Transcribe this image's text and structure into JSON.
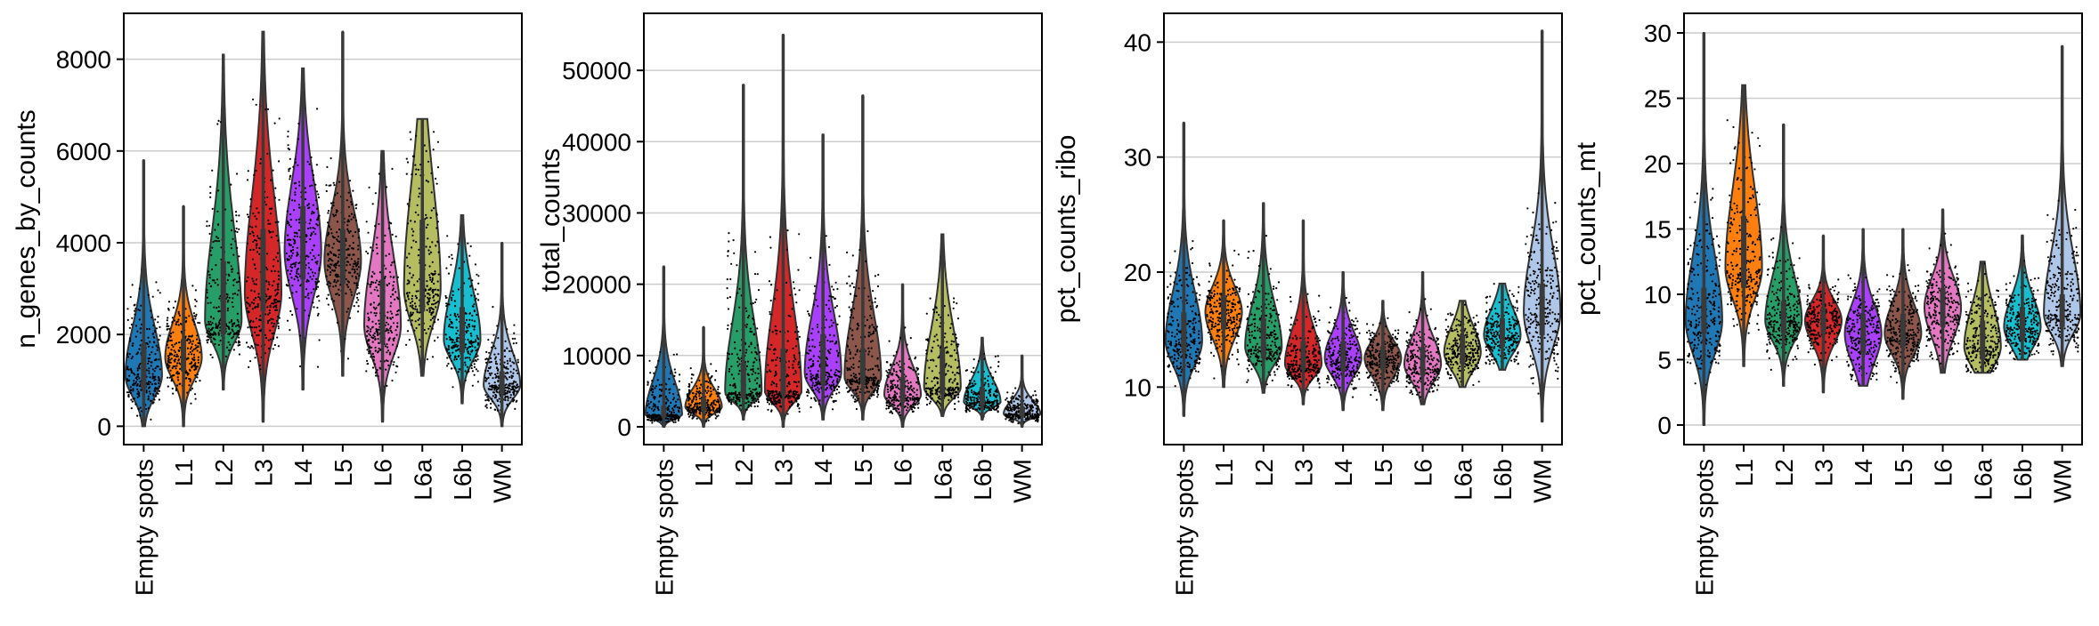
{
  "figure": {
    "palette": {
      "Empty spots": "#1f77b4",
      "L1": "#ff7f0e",
      "L2": "#279e68",
      "L3": "#d62728",
      "L4": "#aa40fc",
      "L5": "#8c564b",
      "L6": "#e377c2",
      "L6a": "#b5bd61",
      "L6b": "#17becf",
      "WM": "#aec7e8"
    }
  },
  "chart_data": [
    {
      "type": "violin",
      "ylabel": "n_genes_by_counts",
      "categories": [
        "Empty spots",
        "L1",
        "L2",
        "L3",
        "L4",
        "L5",
        "L6",
        "L6a",
        "L6b",
        "WM"
      ],
      "yticks": [
        0,
        2000,
        4000,
        6000,
        8000
      ],
      "ylim": [
        -400,
        9000
      ],
      "grid": true,
      "series": [
        {
          "category": "Empty spots",
          "min": 0,
          "max": 5800,
          "median": 1200,
          "q1": 800,
          "q3": 1800,
          "mode": 1100
        },
        {
          "category": "L1",
          "min": 0,
          "max": 4800,
          "median": 1500,
          "q1": 1200,
          "q3": 1900,
          "mode": 1500
        },
        {
          "category": "L2",
          "min": 800,
          "max": 8100,
          "median": 2600,
          "q1": 2000,
          "q3": 3600,
          "mode": 2300
        },
        {
          "category": "L3",
          "min": 100,
          "max": 8600,
          "median": 3300,
          "q1": 2500,
          "q3": 4300,
          "mode": 2900
        },
        {
          "category": "L4",
          "min": 800,
          "max": 7800,
          "median": 4000,
          "q1": 3200,
          "q3": 4800,
          "mode": 3800
        },
        {
          "category": "L5",
          "min": 1100,
          "max": 8600,
          "median": 3700,
          "q1": 3100,
          "q3": 4300,
          "mode": 3600
        },
        {
          "category": "L6",
          "min": 100,
          "max": 6000,
          "median": 2400,
          "q1": 1800,
          "q3": 3200,
          "mode": 2200
        },
        {
          "category": "L6a",
          "min": 1100,
          "max": 6700,
          "median": 3500,
          "q1": 2500,
          "q3": 4500,
          "mode": 3000
        },
        {
          "category": "L6b",
          "min": 500,
          "max": 4600,
          "median": 2000,
          "q1": 1600,
          "q3": 2600,
          "mode": 1900
        },
        {
          "category": "WM",
          "min": 0,
          "max": 4000,
          "median": 900,
          "q1": 700,
          "q3": 1200,
          "mode": 900
        }
      ]
    },
    {
      "type": "violin",
      "ylabel": "total_counts",
      "categories": [
        "Empty spots",
        "L1",
        "L2",
        "L3",
        "L4",
        "L5",
        "L6",
        "L6a",
        "L6b",
        "WM"
      ],
      "yticks": [
        0,
        10000,
        20000,
        30000,
        40000,
        50000
      ],
      "ylim": [
        -2500,
        58000
      ],
      "grid": true,
      "series": [
        {
          "category": "Empty spots",
          "min": 0,
          "max": 22500,
          "median": 2000,
          "q1": 1300,
          "q3": 3000,
          "mode": 1700
        },
        {
          "category": "L1",
          "min": 0,
          "max": 14000,
          "median": 3000,
          "q1": 2200,
          "q3": 4000,
          "mode": 2800
        },
        {
          "category": "L2",
          "min": 1000,
          "max": 48000,
          "median": 6000,
          "q1": 4000,
          "q3": 9000,
          "mode": 4800
        },
        {
          "category": "L3",
          "min": 0,
          "max": 55000,
          "median": 7000,
          "q1": 4500,
          "q3": 11000,
          "mode": 5000
        },
        {
          "category": "L4",
          "min": 1000,
          "max": 41000,
          "median": 9000,
          "q1": 6000,
          "q3": 13000,
          "mode": 7500
        },
        {
          "category": "L5",
          "min": 1000,
          "max": 46500,
          "median": 8000,
          "q1": 6000,
          "q3": 11000,
          "mode": 7000
        },
        {
          "category": "L6",
          "min": 0,
          "max": 20000,
          "median": 5000,
          "q1": 3500,
          "q3": 7000,
          "mode": 4500
        },
        {
          "category": "L6a",
          "min": 1500,
          "max": 27000,
          "median": 7000,
          "q1": 4500,
          "q3": 11000,
          "mode": 5500
        },
        {
          "category": "L6b",
          "min": 1000,
          "max": 12500,
          "median": 4000,
          "q1": 3000,
          "q3": 5500,
          "mode": 3500
        },
        {
          "category": "WM",
          "min": 0,
          "max": 10000,
          "median": 2000,
          "q1": 1500,
          "q3": 2800,
          "mode": 1800
        }
      ]
    },
    {
      "type": "violin",
      "ylabel": "pct_counts_ribo",
      "categories": [
        "Empty spots",
        "L1",
        "L2",
        "L3",
        "L4",
        "L5",
        "L6",
        "L6a",
        "L6b",
        "WM"
      ],
      "yticks": [
        10,
        20,
        30,
        40
      ],
      "ylim": [
        5,
        42.5
      ],
      "grid": true,
      "series": [
        {
          "category": "Empty spots",
          "min": 7.5,
          "max": 33,
          "median": 14.5,
          "q1": 13,
          "q3": 16.5,
          "mode": 14
        },
        {
          "category": "L1",
          "min": 10,
          "max": 24.5,
          "median": 16.5,
          "q1": 15,
          "q3": 18,
          "mode": 16.5
        },
        {
          "category": "L2",
          "min": 9.5,
          "max": 26,
          "median": 14,
          "q1": 12.5,
          "q3": 16,
          "mode": 13.5
        },
        {
          "category": "L3",
          "min": 8.5,
          "max": 24.5,
          "median": 12.5,
          "q1": 11.5,
          "q3": 14,
          "mode": 12
        },
        {
          "category": "L4",
          "min": 8,
          "max": 20,
          "median": 12.5,
          "q1": 11.5,
          "q3": 14,
          "mode": 12.5
        },
        {
          "category": "L5",
          "min": 8,
          "max": 17.5,
          "median": 12.5,
          "q1": 11.5,
          "q3": 13.5,
          "mode": 12.5
        },
        {
          "category": "L6",
          "min": 8.5,
          "max": 20,
          "median": 12,
          "q1": 11,
          "q3": 13.5,
          "mode": 12
        },
        {
          "category": "L6a",
          "min": 10,
          "max": 17.5,
          "median": 13,
          "q1": 12,
          "q3": 14.5,
          "mode": 13
        },
        {
          "category": "L6b",
          "min": 11.5,
          "max": 19,
          "median": 14.5,
          "q1": 13.5,
          "q3": 16,
          "mode": 14.5
        },
        {
          "category": "WM",
          "min": 7,
          "max": 41,
          "median": 16.5,
          "q1": 14.5,
          "q3": 19,
          "mode": 16.5
        }
      ]
    },
    {
      "type": "violin",
      "ylabel": "pct_counts_mt",
      "categories": [
        "Empty spots",
        "L1",
        "L2",
        "L3",
        "L4",
        "L5",
        "L6",
        "L6a",
        "L6b",
        "WM"
      ],
      "yticks": [
        0,
        5,
        10,
        15,
        20,
        25,
        30
      ],
      "ylim": [
        -1.5,
        31.5
      ],
      "grid": true,
      "series": [
        {
          "category": "Empty spots",
          "min": 0,
          "max": 30,
          "median": 8.5,
          "q1": 7,
          "q3": 10.5,
          "mode": 8
        },
        {
          "category": "L1",
          "min": 4.5,
          "max": 26,
          "median": 13,
          "q1": 10.5,
          "q3": 16,
          "mode": 12
        },
        {
          "category": "L2",
          "min": 3,
          "max": 23,
          "median": 8,
          "q1": 7,
          "q3": 9.5,
          "mode": 8
        },
        {
          "category": "L3",
          "min": 2.5,
          "max": 14.5,
          "median": 8,
          "q1": 7,
          "q3": 9,
          "mode": 8
        },
        {
          "category": "L4",
          "min": 3,
          "max": 15,
          "median": 7,
          "q1": 5.5,
          "q3": 8.5,
          "mode": 7
        },
        {
          "category": "L5",
          "min": 2,
          "max": 15,
          "median": 7,
          "q1": 6,
          "q3": 8.5,
          "mode": 7
        },
        {
          "category": "L6",
          "min": 4,
          "max": 16.5,
          "median": 9,
          "q1": 7.5,
          "q3": 10.5,
          "mode": 9
        },
        {
          "category": "L6a",
          "min": 4,
          "max": 12.5,
          "median": 6.5,
          "q1": 5,
          "q3": 8,
          "mode": 6
        },
        {
          "category": "L6b",
          "min": 5,
          "max": 14.5,
          "median": 7.5,
          "q1": 6.5,
          "q3": 9,
          "mode": 7.5
        },
        {
          "category": "WM",
          "min": 4.5,
          "max": 29,
          "median": 8.5,
          "q1": 7.5,
          "q3": 10,
          "mode": 8.5
        }
      ]
    }
  ]
}
